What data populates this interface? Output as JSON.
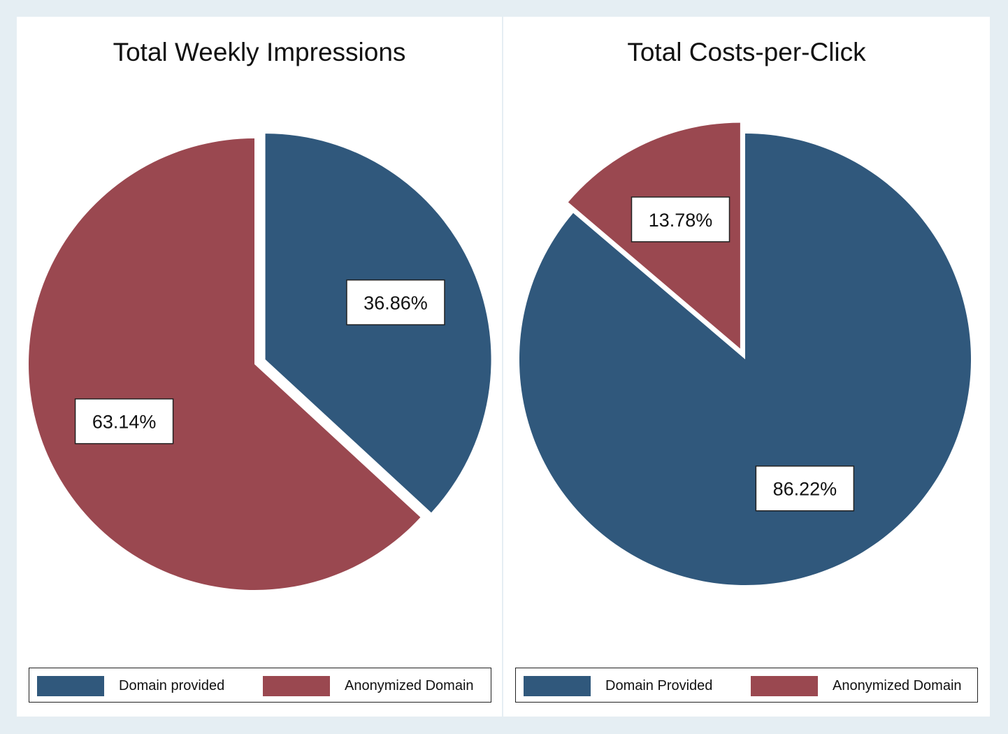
{
  "chart_data": [
    {
      "type": "pie",
      "title": "Total Weekly Impressions",
      "slices": [
        {
          "name": "Domain provided",
          "value": 36.86,
          "label": "36.86%",
          "color": "#30587c",
          "exploded": true
        },
        {
          "name": "Anonymized Domain",
          "value": 63.14,
          "label": "63.14%",
          "color": "#9a4850",
          "exploded": false
        }
      ],
      "start_angle": "12 o'clock, clockwise",
      "legend": {
        "placement": "bottom",
        "entries": [
          "Domain provided",
          "Anonymized Domain"
        ]
      }
    },
    {
      "type": "pie",
      "title": "Total Costs-per-Click",
      "slices": [
        {
          "name": "Domain Provided",
          "value": 86.22,
          "label": "86.22%",
          "color": "#30587c",
          "exploded": false
        },
        {
          "name": "Anonymized Domain",
          "value": 13.78,
          "label": "13.78%",
          "color": "#9a4850",
          "exploded": true
        }
      ],
      "start_angle": "12 o'clock, clockwise",
      "legend": {
        "placement": "bottom",
        "entries": [
          "Domain Provided",
          "Anonymized Domain"
        ]
      }
    }
  ]
}
